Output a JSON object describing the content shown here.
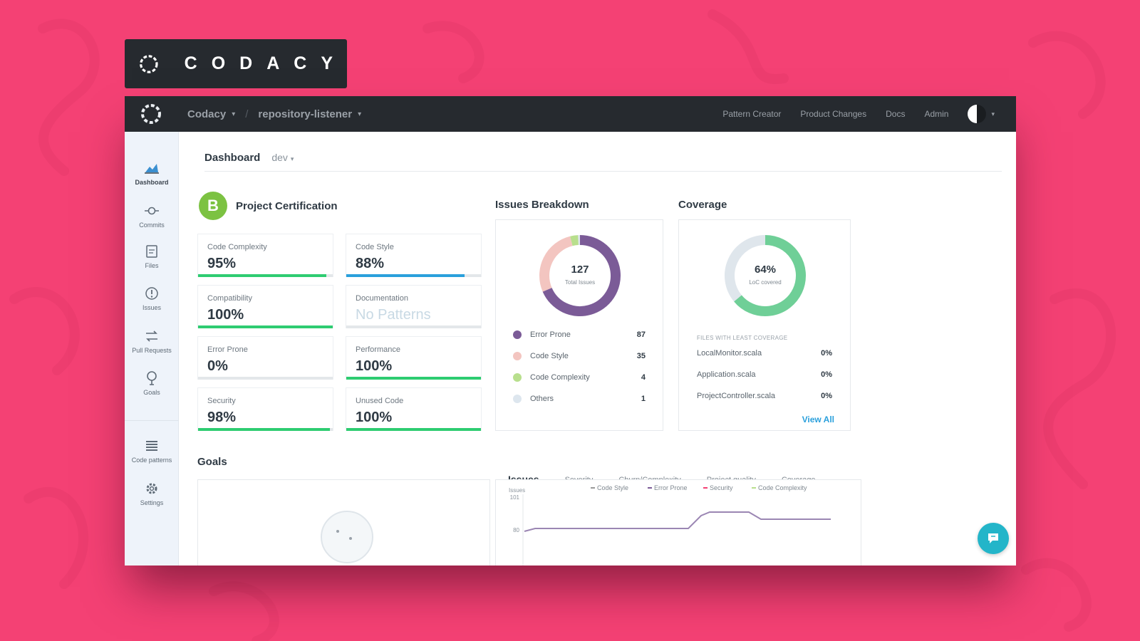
{
  "brand": {
    "wordmark": "CODACY"
  },
  "topbar": {
    "org": "Codacy",
    "separator": "/",
    "repo": "repository-listener",
    "nav": [
      "Pattern Creator",
      "Product Changes",
      "Docs",
      "Admin"
    ]
  },
  "sidebar": {
    "items": [
      {
        "label": "Dashboard",
        "icon": "dashboard-icon",
        "active": true
      },
      {
        "label": "Commits",
        "icon": "commits-icon"
      },
      {
        "label": "Files",
        "icon": "files-icon"
      },
      {
        "label": "Issues",
        "icon": "issues-icon"
      },
      {
        "label": "Pull Requests",
        "icon": "pull-requests-icon"
      },
      {
        "label": "Goals",
        "icon": "goals-icon"
      },
      {
        "label": "Code patterns",
        "icon": "code-patterns-icon"
      },
      {
        "label": "Settings",
        "icon": "settings-icon"
      }
    ]
  },
  "page": {
    "title": "Dashboard",
    "branch": "dev"
  },
  "certification": {
    "grade": "B",
    "title": "Project Certification",
    "metrics": [
      {
        "label": "Code Complexity",
        "value": "95%",
        "level": 0.95,
        "color": "#2ecc71"
      },
      {
        "label": "Code Style",
        "value": "88%",
        "level": 0.88,
        "color": "#2aa0dc"
      },
      {
        "label": "Compatibility",
        "value": "100%",
        "level": 1.0,
        "color": "#2ecc71"
      },
      {
        "label": "Documentation",
        "value": "No Patterns",
        "level": 0,
        "color": "#e3e7ea",
        "muted": true
      },
      {
        "label": "Error Prone",
        "value": "0%",
        "level": 0,
        "color": "#2ecc71"
      },
      {
        "label": "Performance",
        "value": "100%",
        "level": 1.0,
        "color": "#2ecc71"
      },
      {
        "label": "Security",
        "value": "98%",
        "level": 0.98,
        "color": "#2ecc71"
      },
      {
        "label": "Unused Code",
        "value": "100%",
        "level": 1.0,
        "color": "#2ecc71"
      }
    ]
  },
  "issues_breakdown": {
    "title": "Issues Breakdown",
    "total": "127",
    "total_label": "Total Issues",
    "items": [
      {
        "label": "Error Prone",
        "count": 87,
        "color": "#7b5b97"
      },
      {
        "label": "Code Style",
        "count": 35,
        "color": "#f3c5c0"
      },
      {
        "label": "Code Complexity",
        "count": 4,
        "color": "#b8df8d"
      },
      {
        "label": "Others",
        "count": 1,
        "color": "#dde6ee"
      }
    ]
  },
  "coverage": {
    "title": "Coverage",
    "percent": "64%",
    "percent_label": "LoC covered",
    "level": 0.64,
    "colors": {
      "covered": "#6fcf97",
      "uncovered": "#dfe6ec"
    },
    "subtitle": "FILES WITH LEAST COVERAGE",
    "files": [
      {
        "name": "LocalMonitor.scala",
        "pct": "0%"
      },
      {
        "name": "Application.scala",
        "pct": "0%"
      },
      {
        "name": "ProjectController.scala",
        "pct": "0%"
      }
    ],
    "view_all": "View All"
  },
  "goals": {
    "title": "Goals"
  },
  "trend": {
    "tabs": [
      "Issues",
      "Severity",
      "Churn/Complexity",
      "Project quality",
      "Coverage"
    ],
    "active_tab": "Issues",
    "ylabel": "Issues",
    "yticks": [
      "101",
      "80"
    ],
    "legend": [
      "Code Style",
      "Error Prone",
      "Security",
      "Code Complexity"
    ],
    "legend_colors": [
      "#999999",
      "#7b5b97",
      "#f44174",
      "#b8df8d"
    ]
  }
}
